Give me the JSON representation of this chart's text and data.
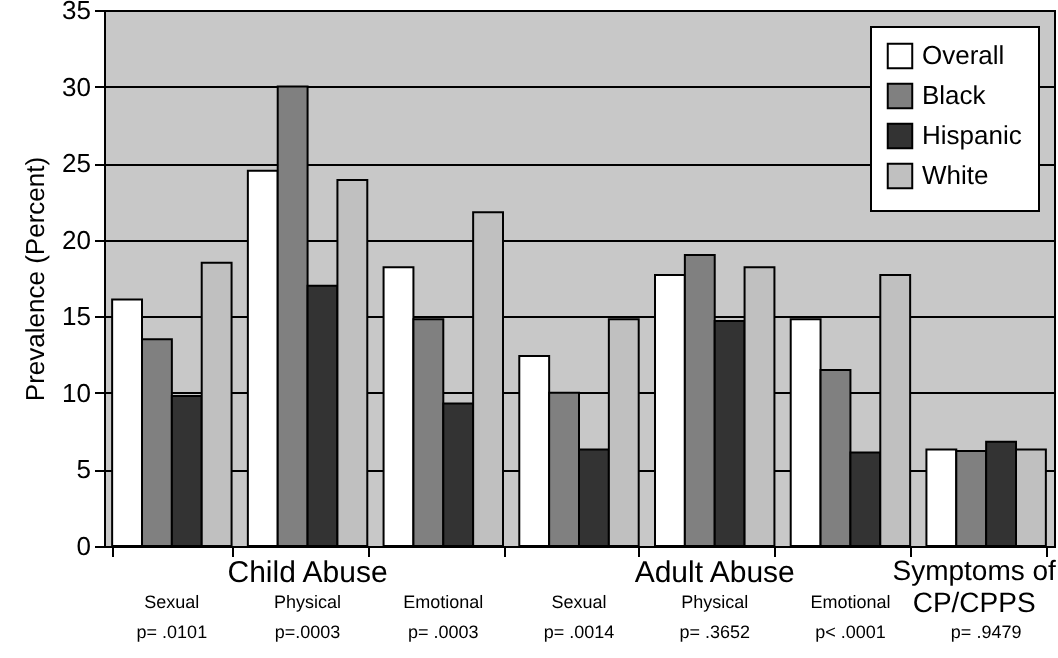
{
  "chart_data": {
    "type": "bar",
    "ylabel": "Prevalence (Percent)",
    "categories": [
      "Sexual",
      "Physical",
      "Emotional",
      "Sexual",
      "Physical",
      "Emotional",
      "Symptoms of CP/CPPS"
    ],
    "series": [
      {
        "name": "Overall",
        "color": "#ffffff",
        "values": [
          16.1,
          24.5,
          18.2,
          12.4,
          17.7,
          14.8,
          6.3
        ]
      },
      {
        "name": "Black",
        "color": "#808080",
        "values": [
          13.5,
          30,
          14.8,
          10,
          19,
          11.5,
          6.2
        ]
      },
      {
        "name": "Hispanic",
        "color": "#333333",
        "values": [
          9.8,
          17,
          9.3,
          6.3,
          14.7,
          6.1,
          6.8
        ]
      },
      {
        "name": "White",
        "color": "#c0c0c0",
        "values": [
          18.5,
          23.9,
          21.8,
          14.8,
          18.2,
          17.7,
          6.3
        ]
      }
    ],
    "annotations": [
      "Child Abuse",
      "Adult Abuse",
      "p= .0101",
      "p=.0003",
      "p= .0003",
      "p= .0014",
      "p= .3652",
      "p< .0001",
      "p= .9479"
    ],
    "ylim": [
      0,
      35
    ],
    "yticks": [
      0,
      5,
      10,
      15,
      20,
      25,
      30,
      35
    ],
    "grid": "y",
    "legend": "top right"
  }
}
